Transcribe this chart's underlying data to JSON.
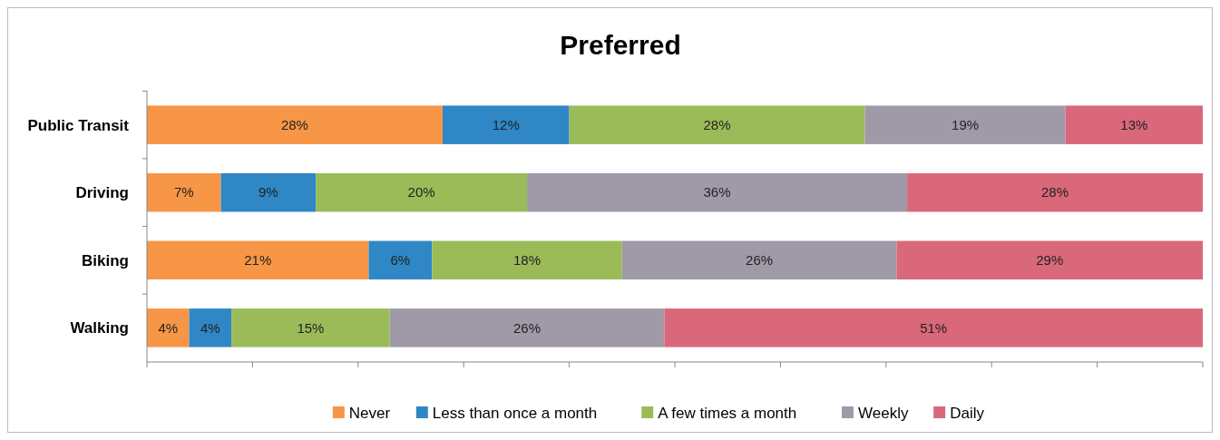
{
  "chart_data": {
    "type": "bar",
    "title": "Preferred",
    "orientation": "horizontal",
    "stacked": true,
    "categories": [
      "Public Transit",
      "Driving",
      "Biking",
      "Walking"
    ],
    "series": [
      {
        "name": "Never",
        "color": "#f79646",
        "values": [
          28,
          7,
          21,
          4
        ],
        "value_labels": [
          "28%",
          "7%",
          "21%",
          "4%"
        ]
      },
      {
        "name": "Less than once a month",
        "color": "#2f87c5",
        "values": [
          12,
          9,
          6,
          4
        ],
        "value_labels": [
          "12%",
          "9%",
          "6%",
          "4%"
        ]
      },
      {
        "name": "A few times a month",
        "color": "#9bbb59",
        "values": [
          28,
          20,
          18,
          15
        ],
        "value_labels": [
          "28%",
          "20%",
          "18%",
          "15%"
        ]
      },
      {
        "name": "Weekly",
        "color": "#a09aa8",
        "values": [
          19,
          36,
          26,
          26
        ],
        "value_labels": [
          "19%",
          "36%",
          "26%",
          "26%"
        ]
      },
      {
        "name": "Daily",
        "color": "#d9687a",
        "values": [
          13,
          28,
          29,
          51
        ],
        "value_labels": [
          "13%",
          "28%",
          "29%",
          "51%"
        ]
      }
    ],
    "xlim": [
      0,
      100
    ],
    "xticks": [
      {
        "value": 0,
        "label": null
      },
      {
        "value": 10,
        "label": null
      },
      {
        "value": 20,
        "label": null
      },
      {
        "value": 30,
        "label": null
      },
      {
        "value": 40,
        "label": null
      },
      {
        "value": 50,
        "label": null
      },
      {
        "value": 60,
        "label": null
      },
      {
        "value": 70,
        "label": null
      },
      {
        "value": 80,
        "label": null
      },
      {
        "value": 90,
        "label": null
      },
      {
        "value": 100,
        "label": null
      }
    ],
    "tick_labels": "y",
    "legend": "bottom"
  }
}
